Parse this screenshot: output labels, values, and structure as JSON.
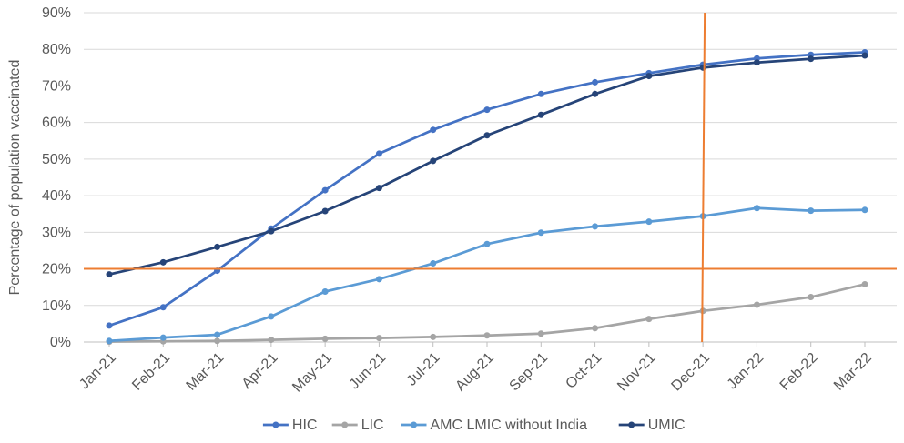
{
  "chart_data": {
    "type": "line",
    "title": "",
    "xlabel": "",
    "ylabel": "Percentage of population vaccinated",
    "categories": [
      "Jan-21",
      "Feb-21",
      "Mar-21",
      "Apr-21",
      "May-21",
      "Jun-21",
      "Jul-21",
      "Aug-21",
      "Sep-21",
      "Oct-21",
      "Nov-21",
      "Dec-21",
      "Jan-22",
      "Feb-22",
      "Mar-22"
    ],
    "ylim": [
      0,
      90
    ],
    "y_ticks": [
      "0%",
      "10%",
      "20%",
      "30%",
      "40%",
      "50%",
      "60%",
      "70%",
      "80%",
      "90%"
    ],
    "grid": "horizontal",
    "legend_position": "bottom",
    "series": [
      {
        "name": "HIC",
        "color": "#4472C4",
        "values": [
          4.5,
          9.5,
          19.5,
          31,
          41.5,
          51.5,
          58,
          63.5,
          67.8,
          71,
          73.5,
          75.8,
          77.5,
          78.5,
          79.2
        ]
      },
      {
        "name": "LIC",
        "color": "#A5A5A5",
        "values": [
          0.1,
          0.2,
          0.3,
          0.6,
          0.9,
          1.1,
          1.4,
          1.8,
          2.3,
          3.8,
          6.3,
          8.5,
          10.2,
          12.3,
          15.8
        ]
      },
      {
        "name": "AMC LMIC without India",
        "color": "#5B9BD5",
        "values": [
          0.3,
          1.2,
          2.0,
          7.0,
          13.8,
          17.2,
          21.5,
          26.8,
          29.9,
          31.6,
          32.9,
          34.4,
          36.6,
          35.9,
          36.1
        ]
      },
      {
        "name": "UMIC",
        "color": "#264478",
        "values": [
          18.5,
          21.8,
          26.0,
          30.3,
          35.8,
          42.1,
          49.5,
          56.5,
          62.1,
          67.8,
          72.7,
          75.0,
          76.4,
          77.4,
          78.3
        ]
      }
    ],
    "reference_lines": [
      {
        "orientation": "horizontal",
        "value": 20,
        "color": "#ED7D31"
      },
      {
        "orientation": "vertical",
        "value": "Dec-21",
        "color": "#ED7D31"
      }
    ]
  }
}
